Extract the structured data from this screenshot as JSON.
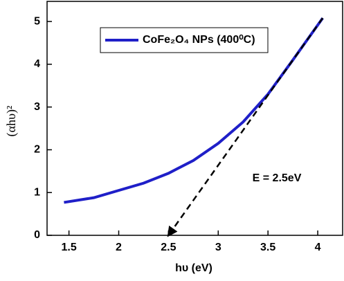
{
  "chart_data": {
    "type": "line",
    "x_label": "hυ (eV)",
    "y_label": "(αhυ)²",
    "x": [
      1.45,
      1.75,
      2.0,
      2.25,
      2.5,
      2.75,
      3.0,
      3.25,
      3.5,
      3.75,
      4.05
    ],
    "series": [
      {
        "name": "CoFe₂O₄ NPs (400⁰C)",
        "color": "#1f1fc8",
        "values": [
          0.77,
          0.88,
          1.05,
          1.22,
          1.45,
          1.75,
          2.15,
          2.65,
          3.3,
          4.1,
          5.08
        ]
      }
    ],
    "tangent": {
      "x": [
        2.5,
        4.05
      ],
      "y": [
        0,
        5.08
      ]
    },
    "annotation": "E = 2.5eV",
    "xlim": [
      1.28,
      4.25
    ],
    "ylim": [
      0,
      5.47
    ],
    "xticks": [
      1.5,
      2.0,
      2.5,
      3.0,
      3.5,
      4.0
    ],
    "yticks": [
      0,
      1,
      2,
      3,
      4,
      5
    ],
    "legend": "upper-left",
    "grid": false
  }
}
